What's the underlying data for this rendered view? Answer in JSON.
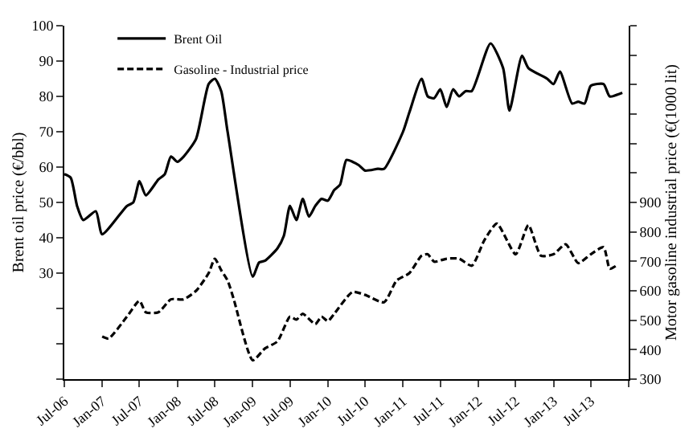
{
  "chart_data": {
    "type": "line",
    "ylabel": "Brent oil price (€/bbl)",
    "y2label": "Motor gasoline industrial price (€(1000 lit)",
    "legend": "top left",
    "marker": "none",
    "xlim": [
      "2006-07",
      "2014-01"
    ],
    "xticks": [
      {
        "value": "2006-07",
        "label": "Jul-06"
      },
      {
        "value": "2007-01",
        "label": "Jan-07"
      },
      {
        "value": "2007-07",
        "label": "Jul-07"
      },
      {
        "value": "2008-01",
        "label": "Jan-08"
      },
      {
        "value": "2008-07",
        "label": "Jul-08"
      },
      {
        "value": "2009-01",
        "label": "Jan-09"
      },
      {
        "value": "2009-07",
        "label": "Jul-09"
      },
      {
        "value": "2010-01",
        "label": "Jan-10"
      },
      {
        "value": "2010-07",
        "label": "Jul-10"
      },
      {
        "value": "2011-01",
        "label": "Jan-11"
      },
      {
        "value": "2011-07",
        "label": "Jul-11"
      },
      {
        "value": "2012-01",
        "label": "Jan-12"
      },
      {
        "value": "2012-07",
        "label": "Jul-12"
      },
      {
        "value": "2013-01",
        "label": "Jan-13"
      },
      {
        "value": "2013-07",
        "label": "Jul-13"
      },
      {
        "value": "2014-01",
        "label": null
      }
    ],
    "ylim": [
      0,
      100
    ],
    "yticks": [
      {
        "value": 0,
        "label": null
      },
      {
        "value": 10,
        "label": null
      },
      {
        "value": 20,
        "label": null
      },
      30,
      40,
      50,
      60,
      70,
      80,
      90,
      100
    ],
    "y2lim": [
      300,
      1500
    ],
    "y2ticks": [
      300,
      400,
      500,
      600,
      700,
      800,
      900,
      {
        "value": 1000,
        "label": null
      },
      {
        "value": 1100,
        "label": null
      },
      {
        "value": 1200,
        "label": null
      },
      {
        "value": 1300,
        "label": null
      },
      {
        "value": 1400,
        "label": null
      },
      {
        "value": 1500,
        "label": null
      }
    ],
    "series": [
      {
        "name": "Brent Oil",
        "color": "#000000",
        "line_style": "solid",
        "x": [
          "2006-07",
          "2006-08",
          "2006-09",
          "2006-10",
          "2006-12",
          "2007-01",
          "2007-05",
          "2007-06",
          "2007-07",
          "2007-08",
          "2007-10",
          "2007-11",
          "2007-12",
          "2008-01",
          "2008-02",
          "2008-04",
          "2008-06",
          "2008-07",
          "2008-08",
          "2008-09",
          "2009-01",
          "2009-02",
          "2009-03",
          "2009-05",
          "2009-06",
          "2009-07",
          "2009-08",
          "2009-09",
          "2009-10",
          "2009-11",
          "2009-12",
          "2010-01",
          "2010-02",
          "2010-03",
          "2010-04",
          "2010-05",
          "2010-06",
          "2010-07",
          "2010-09",
          "2010-10",
          "2011-01",
          "2011-02",
          "2011-04",
          "2011-05",
          "2011-06",
          "2011-07",
          "2011-08",
          "2011-09",
          "2011-10",
          "2011-11",
          "2011-12",
          "2012-03",
          "2012-05",
          "2012-06",
          "2012-08",
          "2012-09",
          "2012-12",
          "2013-01",
          "2013-02",
          "2013-04",
          "2013-05",
          "2013-06",
          "2013-07",
          "2013-09",
          "2013-10",
          "2013-12"
        ],
        "values": [
          58,
          57,
          49,
          45,
          47.5,
          41,
          49,
          50,
          56,
          52,
          56.5,
          58,
          63,
          61.5,
          63,
          68,
          83.5,
          85,
          81.5,
          70,
          29,
          33,
          33.5,
          37,
          40.5,
          49,
          45,
          51,
          46,
          49,
          51,
          50.5,
          53.5,
          55,
          62,
          61.5,
          60.5,
          59,
          59.5,
          59.5,
          70,
          75.5,
          85,
          80,
          79.5,
          82,
          77,
          82,
          80,
          81.5,
          81.5,
          95,
          88,
          76,
          91.5,
          88,
          85,
          83.5,
          87,
          78,
          78.5,
          78,
          83,
          83.5,
          80,
          81
        ]
      },
      {
        "name": "Gasoline - Industrial price",
        "color": "#000000",
        "line_style": "dashed",
        "axis": "y2",
        "x": [
          "2007-01",
          "2007-02",
          "2007-05",
          "2007-07",
          "2007-08",
          "2007-10",
          "2007-12",
          "2008-02",
          "2008-04",
          "2008-06",
          "2008-07",
          "2008-08",
          "2008-09",
          "2008-10",
          "2009-01",
          "2009-03",
          "2009-05",
          "2009-07",
          "2009-08",
          "2009-09",
          "2009-11",
          "2009-12",
          "2010-01",
          "2010-02",
          "2010-05",
          "2010-07",
          "2010-10",
          "2010-12",
          "2011-02",
          "2011-04",
          "2011-05",
          "2011-06",
          "2011-08",
          "2011-10",
          "2011-12",
          "2012-02",
          "2012-04",
          "2012-07",
          "2012-09",
          "2012-11",
          "2013-01",
          "2013-03",
          "2013-05",
          "2013-07",
          "2013-09",
          "2013-10",
          "2013-11"
        ],
        "values": [
          445,
          438,
          512,
          566,
          527,
          527,
          571,
          571,
          600,
          660,
          709,
          670,
          635,
          571,
          364,
          404,
          428,
          512,
          502,
          522,
          487,
          512,
          497,
          522,
          596,
          586,
          561,
          635,
          660,
          719,
          724,
          699,
          709,
          709,
          685,
          773,
          828,
          724,
          823,
          719,
          724,
          758,
          694,
          724,
          748,
          675,
          685
        ]
      }
    ]
  }
}
